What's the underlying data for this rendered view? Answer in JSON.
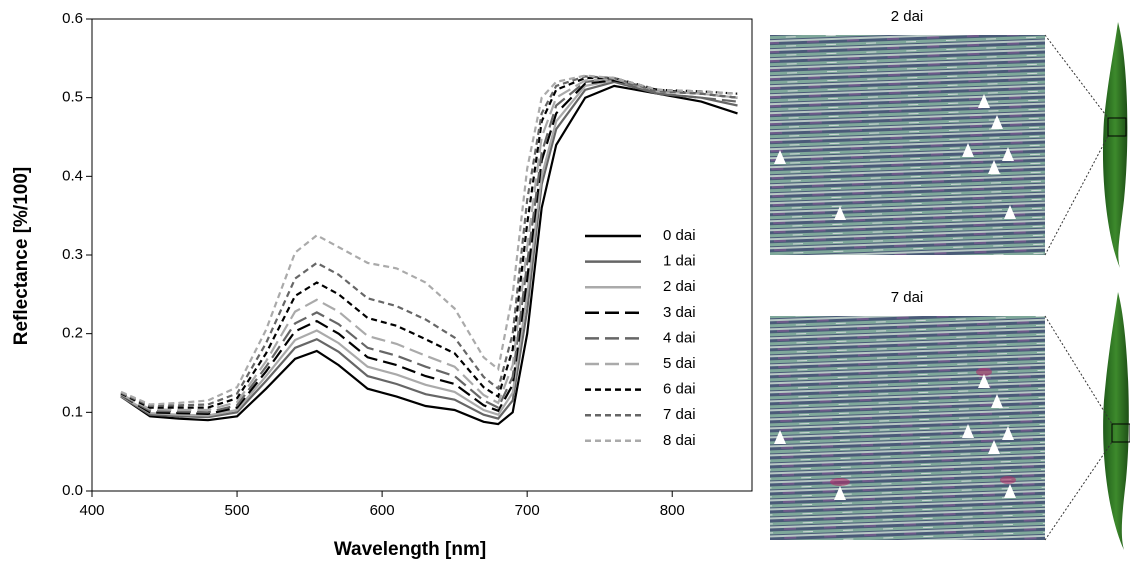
{
  "chart_data": {
    "type": "line",
    "x_label": "Wavelength [nm]",
    "y_label": "Reflectance [%/100]",
    "x": [
      420,
      440,
      460,
      480,
      500,
      520,
      540,
      555,
      570,
      590,
      610,
      630,
      650,
      670,
      680,
      690,
      700,
      710,
      720,
      740,
      760,
      790,
      820,
      845
    ],
    "series": [
      {
        "name": "0 dai",
        "color": "#000000",
        "dash": "solid",
        "values": [
          0.12,
          0.095,
          0.092,
          0.09,
          0.095,
          0.13,
          0.168,
          0.178,
          0.16,
          0.13,
          0.12,
          0.108,
          0.103,
          0.088,
          0.085,
          0.1,
          0.2,
          0.36,
          0.44,
          0.5,
          0.515,
          0.505,
          0.495,
          0.48
        ]
      },
      {
        "name": "1 dai",
        "color": "#666666",
        "dash": "solid",
        "values": [
          0.12,
          0.097,
          0.095,
          0.094,
          0.1,
          0.14,
          0.182,
          0.193,
          0.177,
          0.146,
          0.136,
          0.123,
          0.116,
          0.097,
          0.092,
          0.115,
          0.23,
          0.39,
          0.46,
          0.51,
          0.52,
          0.505,
          0.5,
          0.49
        ]
      },
      {
        "name": "2 dai",
        "color": "#aaaaaa",
        "dash": "solid",
        "values": [
          0.121,
          0.099,
          0.097,
          0.096,
          0.103,
          0.146,
          0.192,
          0.204,
          0.188,
          0.158,
          0.148,
          0.135,
          0.126,
          0.103,
          0.097,
          0.125,
          0.25,
          0.4,
          0.47,
          0.515,
          0.522,
          0.508,
          0.505,
          0.5
        ]
      },
      {
        "name": "3 dai",
        "color": "#000000",
        "dash": "long",
        "values": [
          0.122,
          0.1,
          0.099,
          0.098,
          0.106,
          0.152,
          0.203,
          0.216,
          0.2,
          0.17,
          0.16,
          0.146,
          0.136,
          0.109,
          0.102,
          0.135,
          0.27,
          0.42,
          0.48,
          0.518,
          0.522,
          0.51,
          0.505,
          0.5
        ]
      },
      {
        "name": "4 dai",
        "color": "#666666",
        "dash": "long",
        "values": [
          0.122,
          0.102,
          0.101,
          0.1,
          0.109,
          0.158,
          0.213,
          0.227,
          0.212,
          0.182,
          0.172,
          0.158,
          0.146,
          0.115,
          0.106,
          0.145,
          0.29,
          0.43,
          0.49,
          0.52,
          0.524,
          0.505,
          0.5,
          0.495
        ]
      },
      {
        "name": "5 dai",
        "color": "#aaaaaa",
        "dash": "long",
        "values": [
          0.123,
          0.104,
          0.103,
          0.103,
          0.113,
          0.165,
          0.228,
          0.243,
          0.228,
          0.197,
          0.187,
          0.172,
          0.158,
          0.122,
          0.112,
          0.16,
          0.31,
          0.45,
          0.5,
          0.522,
          0.524,
          0.508,
          0.505,
          0.5
        ]
      },
      {
        "name": "6 dai",
        "color": "#000000",
        "dash": "short",
        "values": [
          0.124,
          0.106,
          0.106,
          0.106,
          0.118,
          0.175,
          0.248,
          0.265,
          0.25,
          0.22,
          0.21,
          0.193,
          0.175,
          0.132,
          0.12,
          0.18,
          0.34,
          0.47,
          0.51,
          0.525,
          0.525,
          0.51,
          0.508,
          0.505
        ]
      },
      {
        "name": "7 dai",
        "color": "#666666",
        "dash": "short",
        "values": [
          0.125,
          0.108,
          0.109,
          0.11,
          0.124,
          0.188,
          0.27,
          0.29,
          0.275,
          0.245,
          0.235,
          0.218,
          0.195,
          0.145,
          0.13,
          0.2,
          0.37,
          0.48,
          0.515,
          0.527,
          0.525,
          0.508,
          0.505,
          0.5
        ]
      },
      {
        "name": "8 dai",
        "color": "#aaaaaa",
        "dash": "short",
        "values": [
          0.126,
          0.11,
          0.112,
          0.115,
          0.132,
          0.205,
          0.303,
          0.325,
          0.31,
          0.29,
          0.283,
          0.265,
          0.232,
          0.17,
          0.155,
          0.25,
          0.41,
          0.5,
          0.52,
          0.528,
          0.525,
          0.51,
          0.508,
          0.505
        ]
      }
    ],
    "xlim": [
      400,
      855
    ],
    "xticks": [
      400,
      500,
      600,
      700,
      800
    ],
    "ylim": [
      0,
      0.6
    ],
    "yticks": [
      {
        "value": 0,
        "label": "0.0"
      },
      0.1,
      0.2,
      0.3,
      0.4,
      0.5,
      0.6
    ],
    "legend": "right",
    "grid": false
  },
  "panels": [
    {
      "title": "2 dai"
    },
    {
      "title": "7 dai"
    }
  ]
}
